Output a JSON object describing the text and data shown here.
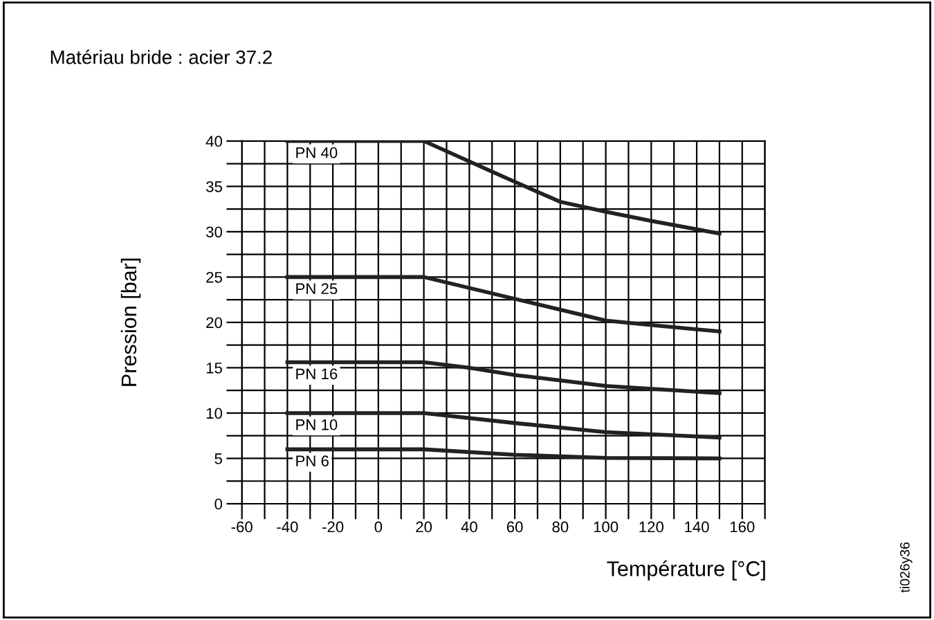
{
  "chart_data": {
    "type": "line",
    "title": "Matériau bride : acier 37.2",
    "xlabel": "Température [°C]",
    "ylabel": "Pression [bar]",
    "annotations": [
      "ti026y36"
    ],
    "xlim": [
      -60,
      170
    ],
    "ylim": [
      0,
      40
    ],
    "xticks": [
      -60,
      {
        "value": -50,
        "label": null
      },
      -40,
      {
        "value": -30,
        "label": null
      },
      -20,
      {
        "value": -10,
        "label": null
      },
      0,
      {
        "value": 10,
        "label": null
      },
      20,
      {
        "value": 30,
        "label": null
      },
      40,
      {
        "value": 50,
        "label": null
      },
      60,
      {
        "value": 70,
        "label": null
      },
      80,
      {
        "value": 90,
        "label": null
      },
      100,
      {
        "value": 110,
        "label": null
      },
      120,
      {
        "value": 130,
        "label": null
      },
      140,
      {
        "value": 150,
        "label": null
      },
      160,
      {
        "value": 170,
        "label": null
      }
    ],
    "yticks": [
      0,
      {
        "value": 2.5,
        "label": null
      },
      5,
      {
        "value": 7.5,
        "label": null
      },
      10,
      {
        "value": 12.5,
        "label": null
      },
      15,
      {
        "value": 17.5,
        "label": null
      },
      20,
      {
        "value": 22.5,
        "label": null
      },
      25,
      {
        "value": 27.5,
        "label": null
      },
      30,
      {
        "value": 32.5,
        "label": null
      },
      35,
      {
        "value": 37.5,
        "label": null
      },
      40
    ],
    "grid": true,
    "marker": "none",
    "line_style": "solid",
    "legend": false,
    "series": [
      {
        "name": "PN 40",
        "color": "#222222",
        "x": [
          -40,
          20,
          60,
          80,
          100,
          120,
          150
        ],
        "values": [
          40,
          40,
          35.5,
          33.3,
          32.2,
          31.2,
          29.8
        ]
      },
      {
        "name": "PN 25",
        "color": "#222222",
        "x": [
          -40,
          20,
          60,
          100,
          120,
          150
        ],
        "values": [
          25,
          25,
          22.6,
          20.2,
          19.7,
          19
        ]
      },
      {
        "name": "PN 16",
        "color": "#222222",
        "x": [
          -40,
          20,
          40,
          60,
          80,
          100,
          150
        ],
        "values": [
          15.6,
          15.6,
          15,
          14.2,
          13.6,
          13,
          12.2
        ]
      },
      {
        "name": "PN 10",
        "color": "#222222",
        "x": [
          -40,
          20,
          60,
          100,
          150
        ],
        "values": [
          10,
          10,
          8.9,
          7.9,
          7.3
        ]
      },
      {
        "name": "PN 6",
        "color": "#222222",
        "x": [
          -40,
          20,
          60,
          100,
          150
        ],
        "values": [
          6,
          6,
          5.4,
          5.05,
          5
        ]
      }
    ]
  }
}
